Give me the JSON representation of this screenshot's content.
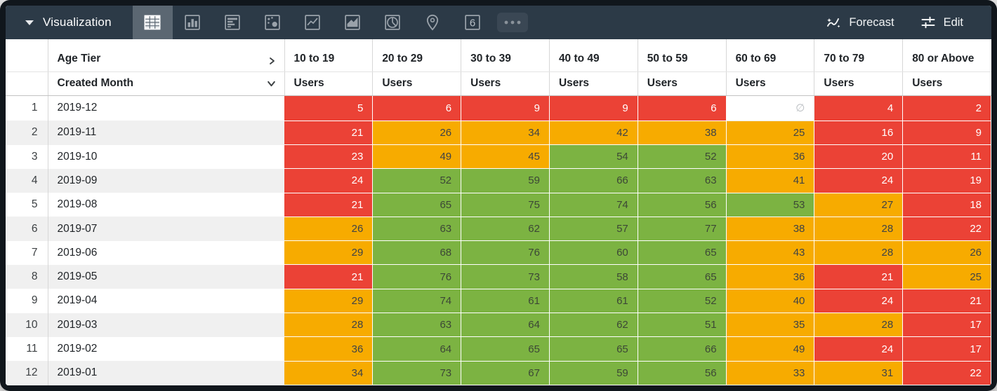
{
  "toolbar": {
    "title": "Visualization",
    "viz_types": [
      "table",
      "bar",
      "row",
      "scatter",
      "line",
      "area",
      "pie",
      "map",
      "single-value",
      "more"
    ],
    "single_value_glyph": "6",
    "forecast_label": "Forecast",
    "edit_label": "Edit"
  },
  "table": {
    "pivot_dimension": "Age Tier",
    "row_dimension": "Created Month",
    "measure": "Users",
    "columns": [
      "10 to 19",
      "20 to 29",
      "30 to 39",
      "40 to 49",
      "50 to 59",
      "60 to 69",
      "70 to 79",
      "80 or Above"
    ],
    "null_symbol": "∅",
    "rows": [
      {
        "n": "1",
        "month": "2019-12",
        "values": [
          "5",
          "6",
          "9",
          "9",
          "6",
          "∅",
          "4",
          "2"
        ],
        "colors": [
          "red",
          "red",
          "red",
          "red",
          "red",
          "null",
          "red",
          "red"
        ]
      },
      {
        "n": "2",
        "month": "2019-11",
        "values": [
          "21",
          "26",
          "34",
          "42",
          "38",
          "25",
          "16",
          "9"
        ],
        "colors": [
          "red",
          "orange",
          "orange",
          "orange",
          "orange",
          "orange",
          "red",
          "red"
        ]
      },
      {
        "n": "3",
        "month": "2019-10",
        "values": [
          "23",
          "49",
          "45",
          "54",
          "52",
          "36",
          "20",
          "11"
        ],
        "colors": [
          "red",
          "orange",
          "orange",
          "green",
          "green",
          "orange",
          "red",
          "red"
        ]
      },
      {
        "n": "4",
        "month": "2019-09",
        "values": [
          "24",
          "52",
          "59",
          "66",
          "63",
          "41",
          "24",
          "19"
        ],
        "colors": [
          "red",
          "green",
          "green",
          "green",
          "green",
          "orange",
          "red",
          "red"
        ]
      },
      {
        "n": "5",
        "month": "2019-08",
        "values": [
          "21",
          "65",
          "75",
          "74",
          "56",
          "53",
          "27",
          "18"
        ],
        "colors": [
          "red",
          "green",
          "green",
          "green",
          "green",
          "green",
          "orange",
          "red"
        ]
      },
      {
        "n": "6",
        "month": "2019-07",
        "values": [
          "26",
          "63",
          "62",
          "57",
          "77",
          "38",
          "28",
          "22"
        ],
        "colors": [
          "orange",
          "green",
          "green",
          "green",
          "green",
          "orange",
          "orange",
          "red"
        ]
      },
      {
        "n": "7",
        "month": "2019-06",
        "values": [
          "29",
          "68",
          "76",
          "60",
          "65",
          "43",
          "28",
          "26"
        ],
        "colors": [
          "orange",
          "green",
          "green",
          "green",
          "green",
          "orange",
          "orange",
          "orange"
        ]
      },
      {
        "n": "8",
        "month": "2019-05",
        "values": [
          "21",
          "76",
          "73",
          "58",
          "65",
          "36",
          "21",
          "25"
        ],
        "colors": [
          "red",
          "green",
          "green",
          "green",
          "green",
          "orange",
          "red",
          "orange"
        ]
      },
      {
        "n": "9",
        "month": "2019-04",
        "values": [
          "29",
          "74",
          "61",
          "61",
          "52",
          "40",
          "24",
          "21"
        ],
        "colors": [
          "orange",
          "green",
          "green",
          "green",
          "green",
          "orange",
          "red",
          "red"
        ]
      },
      {
        "n": "10",
        "month": "2019-03",
        "values": [
          "28",
          "63",
          "64",
          "62",
          "51",
          "35",
          "28",
          "17"
        ],
        "colors": [
          "orange",
          "green",
          "green",
          "green",
          "green",
          "orange",
          "orange",
          "red"
        ]
      },
      {
        "n": "11",
        "month": "2019-02",
        "values": [
          "36",
          "64",
          "65",
          "65",
          "66",
          "49",
          "24",
          "17"
        ],
        "colors": [
          "orange",
          "green",
          "green",
          "green",
          "green",
          "orange",
          "red",
          "red"
        ]
      },
      {
        "n": "12",
        "month": "2019-01",
        "values": [
          "34",
          "73",
          "67",
          "59",
          "56",
          "33",
          "31",
          "22"
        ],
        "colors": [
          "orange",
          "green",
          "green",
          "green",
          "green",
          "orange",
          "orange",
          "red"
        ]
      }
    ]
  },
  "colors": {
    "red": {
      "bg": "#EB4236",
      "text": "#FFFFFF"
    },
    "orange": {
      "bg": "#F7AB00",
      "text": "#3F4347"
    },
    "green": {
      "bg": "#7CB342",
      "text": "#3C4736"
    },
    "null": {
      "bg": "#FFFFFF",
      "text": "#B8BCC0"
    },
    "toolbar_bg": "#2C3A47",
    "toolbar_selected_bg": "#5B6772",
    "frame": "#10161C"
  }
}
